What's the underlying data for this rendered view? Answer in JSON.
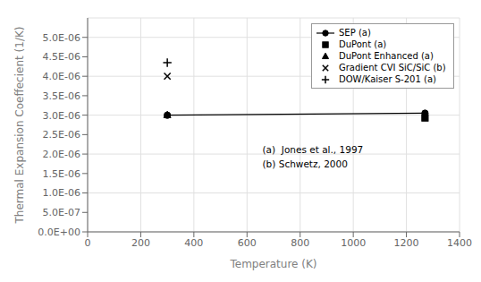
{
  "chart_data": {
    "type": "scatter",
    "title": "",
    "xlabel": "Temperature (K)",
    "ylabel": "Thermal Expansion Coeffecient (1/K)",
    "xlim": [
      0,
      1400
    ],
    "ylim": [
      0.0,
      5.5e-06
    ],
    "xticks": [
      0,
      200,
      400,
      600,
      800,
      1000,
      1200,
      1400
    ],
    "yticks": [
      {
        "value": 0.0,
        "label": "0.0E+00"
      },
      {
        "value": 5e-07,
        "label": "5.0E-07"
      },
      {
        "value": 1e-06,
        "label": "1.0E-06"
      },
      {
        "value": 1.5e-06,
        "label": "1.5E-06"
      },
      {
        "value": 2e-06,
        "label": "2.0E-06"
      },
      {
        "value": 2.5e-06,
        "label": "2.5E-06"
      },
      {
        "value": 3e-06,
        "label": "3.0E-06"
      },
      {
        "value": 3.5e-06,
        "label": "3.5E-06"
      },
      {
        "value": 4e-06,
        "label": "4.0E-06"
      },
      {
        "value": 4.5e-06,
        "label": "4.5E-06"
      },
      {
        "value": 5e-06,
        "label": "5.0E-06"
      }
    ],
    "grid": true,
    "legend": "upper right",
    "series": [
      {
        "name": "SEP (a)",
        "color": "black",
        "marker": "circle",
        "line_style": "solid",
        "x": [
          300,
          1270
        ],
        "values": [
          3e-06,
          3.05e-06
        ]
      },
      {
        "name": "DuPont (a)",
        "color": "black",
        "marker": "square",
        "line_style": "none",
        "x": [
          1270
        ],
        "values": [
          2.93e-06
        ]
      },
      {
        "name": "DuPont Enhanced (a)",
        "color": "black",
        "marker": "triangle",
        "line_style": "none",
        "x": [
          300
        ],
        "values": [
          3e-06
        ]
      },
      {
        "name": "Gradient CVI SiC/SiC (b)",
        "color": "black",
        "marker": "x",
        "line_style": "none",
        "x": [
          300
        ],
        "values": [
          4e-06
        ]
      },
      {
        "name": "DOW/Kaiser S-201 (a)",
        "color": "black",
        "marker": "plus",
        "line_style": "none",
        "x": [
          300
        ],
        "values": [
          4.35e-06
        ]
      }
    ],
    "annotations": [
      "(a)  Jones et al., 1997",
      "(b) Schwetz, 2000"
    ]
  }
}
